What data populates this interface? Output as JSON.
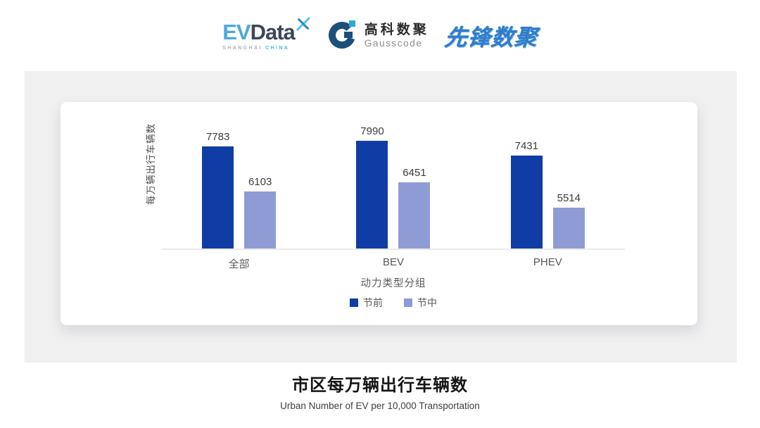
{
  "header": {
    "evdata": {
      "ev": "EV",
      "data": "Data",
      "tagline_shanghai": "SHANGHAI",
      "tagline_china": "CHINA"
    },
    "gausscode": {
      "name_cn": "高科数聚",
      "name_en": "Gausscode"
    },
    "pioneer": {
      "name": "先锋数聚"
    }
  },
  "chart_data": {
    "type": "bar",
    "categories": [
      "全部",
      "BEV",
      "PHEV"
    ],
    "series": [
      {
        "name": "节前",
        "color": "#103DA5",
        "values": [
          7783,
          7990,
          7431
        ]
      },
      {
        "name": "节中",
        "color": "#8E9BD5",
        "values": [
          6103,
          6451,
          5514
        ]
      }
    ],
    "xlabel": "动力类型分组",
    "ylabel": "每万辆出行车辆数",
    "ylim": [
      4000,
      8400
    ],
    "grid": false,
    "value_labels": true,
    "legend_position": "bottom"
  },
  "footer": {
    "title": "市区每万辆出行车辆数",
    "subtitle": "Urban Number of EV per 10,000 Transportation"
  },
  "colors": {
    "panel_bg": "#F0F0F1",
    "card_bg": "#FFFFFF",
    "axis_line": "#EAEAEA",
    "series_pre_holiday": "#103DA5",
    "series_mid_holiday": "#8E9BD5",
    "evdata_blue": "#4BA9DD",
    "evdata_dark": "#3D4757",
    "evdata_cyan": "#3FB9DC",
    "gauss_dark": "#1E4F7B",
    "gauss_cyan": "#2BAAD2",
    "pioneer_blue": "#2F7CCB"
  }
}
